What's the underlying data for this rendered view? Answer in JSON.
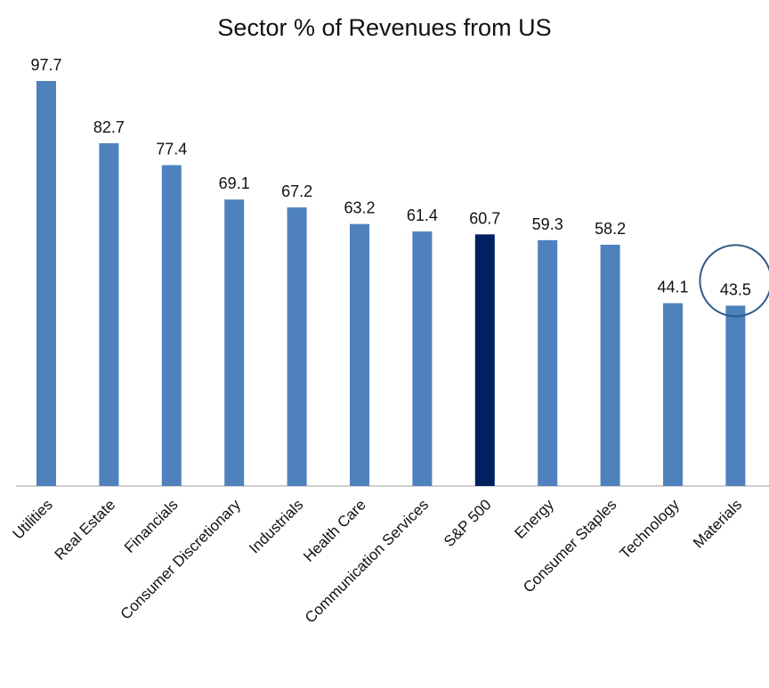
{
  "chart_data": {
    "type": "bar",
    "title": "Sector % of Revenues from US",
    "categories": [
      "Utilities",
      "Real Estate",
      "Financials",
      "Consumer Discretionary",
      "Industrials",
      "Health Care",
      "Communication Services",
      "S&P 500",
      "Energy",
      "Consumer Staples",
      "Technology",
      "Materials"
    ],
    "values": [
      97.7,
      82.7,
      77.4,
      69.1,
      67.2,
      63.2,
      61.4,
      60.7,
      59.3,
      58.2,
      44.1,
      43.5
    ],
    "colors": [
      "#4f81bd",
      "#4f81bd",
      "#4f81bd",
      "#4f81bd",
      "#4f81bd",
      "#4f81bd",
      "#4f81bd",
      "#002060",
      "#4f81bd",
      "#4f81bd",
      "#4f81bd",
      "#4f81bd"
    ],
    "grid": false
  }
}
